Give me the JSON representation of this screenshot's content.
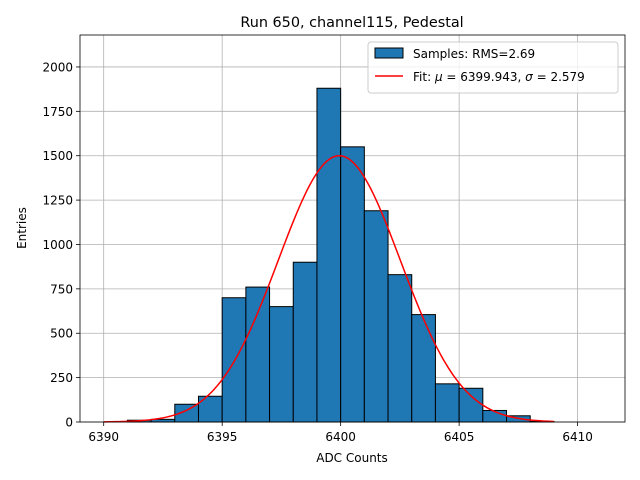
{
  "chart_data": {
    "type": "bar",
    "title": "Run 650, channel115, Pedestal",
    "xlabel": "ADC Counts",
    "ylabel": "Entries",
    "xlim": [
      6389.0,
      6412.0
    ],
    "ylim": [
      0,
      2180
    ],
    "xticks": [
      6390,
      6395,
      6400,
      6405,
      6410
    ],
    "yticks": [
      0,
      250,
      500,
      750,
      1000,
      1250,
      1500,
      1750,
      2000
    ],
    "grid": true,
    "legend_position": "top-right",
    "histogram": {
      "name": "Samples: RMS=2.69",
      "color": "#1f77b4",
      "edge_color": "#000000",
      "bins": [
        {
          "x0": 6390.0,
          "x1": 6391.0,
          "count": 0
        },
        {
          "x0": 6391.0,
          "x1": 6392.0,
          "count": 10
        },
        {
          "x0": 6392.0,
          "x1": 6393.0,
          "count": 15
        },
        {
          "x0": 6393.0,
          "x1": 6394.0,
          "count": 100
        },
        {
          "x0": 6394.0,
          "x1": 6395.0,
          "count": 145
        },
        {
          "x0": 6395.0,
          "x1": 6396.0,
          "count": 700
        },
        {
          "x0": 6396.0,
          "x1": 6397.0,
          "count": 760
        },
        {
          "x0": 6397.0,
          "x1": 6398.0,
          "count": 650
        },
        {
          "x0": 6398.0,
          "x1": 6399.0,
          "count": 900
        },
        {
          "x0": 6399.0,
          "x1": 6400.0,
          "count": 1880
        },
        {
          "x0": 6400.0,
          "x1": 6401.0,
          "count": 1550
        },
        {
          "x0": 6401.0,
          "x1": 6402.0,
          "count": 1190
        },
        {
          "x0": 6402.0,
          "x1": 6403.0,
          "count": 830
        },
        {
          "x0": 6403.0,
          "x1": 6404.0,
          "count": 605
        },
        {
          "x0": 6404.0,
          "x1": 6405.0,
          "count": 215
        },
        {
          "x0": 6405.0,
          "x1": 6406.0,
          "count": 190
        },
        {
          "x0": 6406.0,
          "x1": 6407.0,
          "count": 65
        },
        {
          "x0": 6407.0,
          "x1": 6408.0,
          "count": 35
        },
        {
          "x0": 6408.0,
          "x1": 6409.0,
          "count": 3
        },
        {
          "x0": 6409.0,
          "x1": 6410.0,
          "count": 0
        }
      ]
    },
    "fit": {
      "name_prefix": "Fit: ",
      "name_mu": "μ",
      "name_mid": " = 6399.943, ",
      "name_sigma": "σ",
      "name_suffix": " = 2.579",
      "color": "#ff0000",
      "mu": 6399.943,
      "sigma": 2.579,
      "amplitude": 1500,
      "x_range": [
        6390,
        6409
      ]
    }
  }
}
